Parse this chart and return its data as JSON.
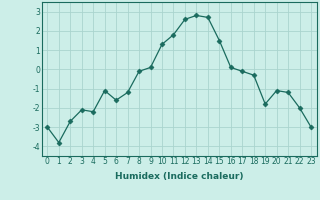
{
  "x": [
    0,
    1,
    2,
    3,
    4,
    5,
    6,
    7,
    8,
    9,
    10,
    11,
    12,
    13,
    14,
    15,
    16,
    17,
    18,
    19,
    20,
    21,
    22,
    23
  ],
  "y": [
    -3.0,
    -3.8,
    -2.7,
    -2.1,
    -2.2,
    -1.1,
    -1.6,
    -1.2,
    -0.1,
    0.1,
    1.3,
    1.8,
    2.6,
    2.8,
    2.7,
    1.5,
    0.1,
    -0.1,
    -0.3,
    -1.8,
    -1.1,
    -1.2,
    -2.0,
    -3.0
  ],
  "xlabel": "Humidex (Indice chaleur)",
  "ylim": [
    -4.5,
    3.5
  ],
  "xlim": [
    -0.5,
    23.5
  ],
  "yticks": [
    -4,
    -3,
    -2,
    -1,
    0,
    1,
    2,
    3
  ],
  "xticks": [
    0,
    1,
    2,
    3,
    4,
    5,
    6,
    7,
    8,
    9,
    10,
    11,
    12,
    13,
    14,
    15,
    16,
    17,
    18,
    19,
    20,
    21,
    22,
    23
  ],
  "line_color": "#1a6b5e",
  "marker_size": 2.5,
  "bg_color": "#cceee8",
  "grid_color": "#aad4ce",
  "tick_fontsize": 5.5,
  "xlabel_fontsize": 6.5
}
